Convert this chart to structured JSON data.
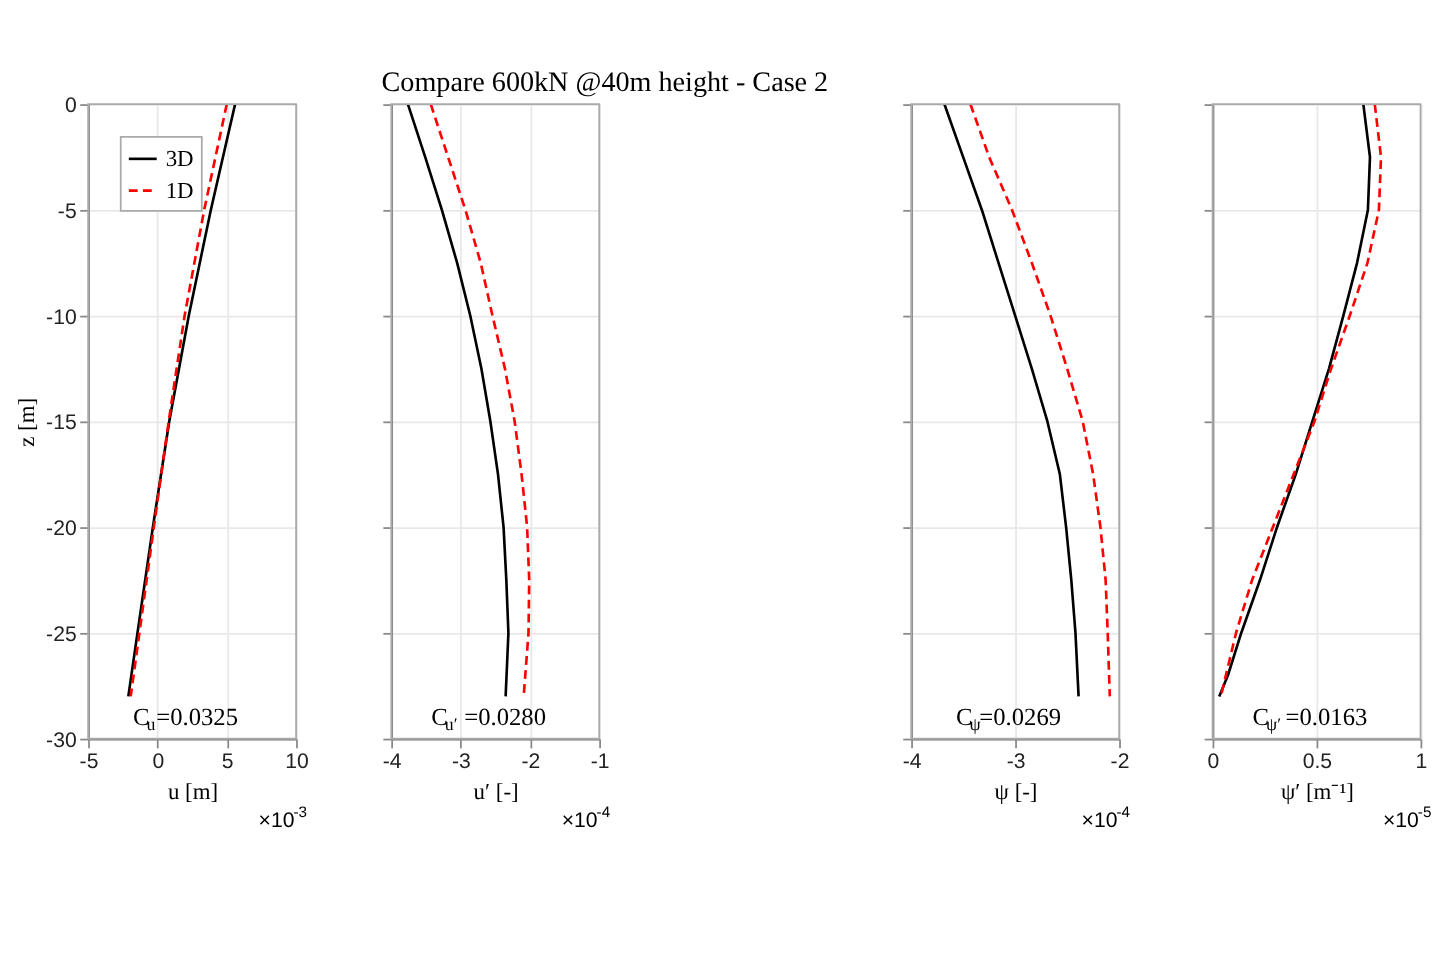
{
  "chart_data": [
    {
      "type": "line",
      "xlabel": "u [m]",
      "ylabel": "z [m]",
      "xlim": [
        -5,
        10
      ],
      "xticks": [
        -5,
        0,
        5,
        10
      ],
      "ylim": [
        -30,
        0
      ],
      "yticks": [
        -30,
        -25,
        -20,
        -15,
        -10,
        -5,
        0
      ],
      "grid": true,
      "legend": "top left",
      "annotations": [
        "C$_{u}$=0.0325",
        "×10$^{-3}$"
      ],
      "series": [
        {
          "name": "3D",
          "color": "#000000",
          "line_style": "solid",
          "x": [
            5.6,
            3.85,
            2.26,
            0.85,
            -0.33,
            -1.44,
            -2.1
          ],
          "values": [
            0,
            -5,
            -10,
            -15,
            -20,
            -25,
            -28
          ]
        },
        {
          "name": "1D",
          "color": "#ff0000",
          "line_style": "dashed",
          "x": [
            5.0,
            3.37,
            1.96,
            0.81,
            -0.26,
            -1.3,
            -1.93
          ],
          "values": [
            0,
            -5,
            -10,
            -15,
            -20,
            -25,
            -28
          ]
        }
      ]
    },
    {
      "type": "line",
      "title": "Compare 600kN @40m height - Case 2",
      "xlabel": "u′ [-]",
      "xlim": [
        -4,
        -1
      ],
      "xticks": [
        -4,
        -3,
        -2,
        -1
      ],
      "ylim": [
        -30,
        0
      ],
      "yticks": [
        -30,
        -25,
        -20,
        -15,
        -10,
        -5,
        0
      ],
      "grid": true,
      "tick_labels": "x",
      "annotations": [
        "C$_{u′}$=0.0280",
        "×10$^{-4}$"
      ],
      "series": [
        {
          "color": "#000000",
          "line_style": "solid",
          "x": [
            -3.76,
            -3.51,
            -3.27,
            -3.05,
            -2.86,
            -2.7,
            -2.57,
            -2.46,
            -2.38,
            -2.34,
            -2.31,
            -2.35
          ],
          "values": [
            0,
            -2.5,
            -5,
            -7.5,
            -10,
            -12.5,
            -15,
            -17.5,
            -20,
            -22.5,
            -25,
            -28
          ]
        },
        {
          "color": "#ff0000",
          "line_style": "dashed",
          "x": [
            -3.43,
            -3.18,
            -2.93,
            -2.71,
            -2.54,
            -2.36,
            -2.22,
            -2.12,
            -2.04,
            -2.01,
            -2.02,
            -2.09
          ],
          "values": [
            0,
            -2.5,
            -5,
            -7.5,
            -10,
            -12.5,
            -15,
            -17.5,
            -20,
            -22.5,
            -25,
            -28
          ]
        }
      ]
    },
    {
      "type": "line",
      "xlabel": "ψ [-]",
      "xlim": [
        -4,
        -2
      ],
      "xticks": [
        -4,
        -3,
        -2
      ],
      "ylim": [
        -30,
        0
      ],
      "yticks": [
        -30,
        -25,
        -20,
        -15,
        -10,
        -5,
        0
      ],
      "grid": true,
      "tick_labels": "x",
      "annotations": [
        "C$_{ψ}$=0.0269",
        "×10$^{-4}$"
      ],
      "series": [
        {
          "color": "#000000",
          "line_style": "solid",
          "x": [
            -3.68,
            -3.5,
            -3.32,
            -3.16,
            -3.0,
            -2.84,
            -2.69,
            -2.57,
            -2.51,
            -2.46,
            -2.42,
            -2.39
          ],
          "values": [
            0,
            -2.5,
            -5,
            -7.5,
            -10,
            -12.5,
            -15,
            -17.5,
            -20,
            -22.5,
            -25,
            -28
          ]
        },
        {
          "color": "#ff0000",
          "line_style": "dashed",
          "x": [
            -3.43,
            -3.25,
            -3.03,
            -2.84,
            -2.66,
            -2.5,
            -2.35,
            -2.25,
            -2.18,
            -2.13,
            -2.11,
            -2.09
          ],
          "values": [
            0,
            -2.5,
            -5,
            -7.5,
            -10,
            -12.5,
            -15,
            -17.5,
            -20,
            -22.5,
            -25,
            -28
          ]
        }
      ]
    },
    {
      "type": "line",
      "xlabel": "ψ′ [m⁻¹]",
      "xlim": [
        0,
        1
      ],
      "xticks": [
        0,
        0.5,
        1
      ],
      "ylim": [
        -30,
        0
      ],
      "yticks": [
        -30,
        -25,
        -20,
        -15,
        -10,
        -5,
        0
      ],
      "grid": true,
      "tick_labels": "x",
      "annotations": [
        "C$_{ψ′}$=0.0163",
        "×10$^{-5}$"
      ],
      "series": [
        {
          "color": "#000000",
          "line_style": "solid",
          "x": [
            0.725,
            0.757,
            0.747,
            0.695,
            0.629,
            0.56,
            0.48,
            0.4,
            0.31,
            0.228,
            0.138,
            0.074,
            0.032
          ],
          "values": [
            0,
            -2.5,
            -5,
            -7.5,
            -10,
            -12.5,
            -15,
            -17.5,
            -20,
            -22.5,
            -25,
            -27,
            -28
          ]
        },
        {
          "color": "#ff0000",
          "line_style": "dashed",
          "x": [
            0.78,
            0.81,
            0.8,
            0.745,
            0.66,
            0.57,
            0.49,
            0.39,
            0.29,
            0.19,
            0.113,
            0.04
          ],
          "values": [
            0,
            -2.5,
            -5,
            -7.5,
            -10,
            -12.5,
            -15,
            -17.5,
            -20,
            -22.5,
            -25,
            -28
          ]
        }
      ]
    }
  ]
}
